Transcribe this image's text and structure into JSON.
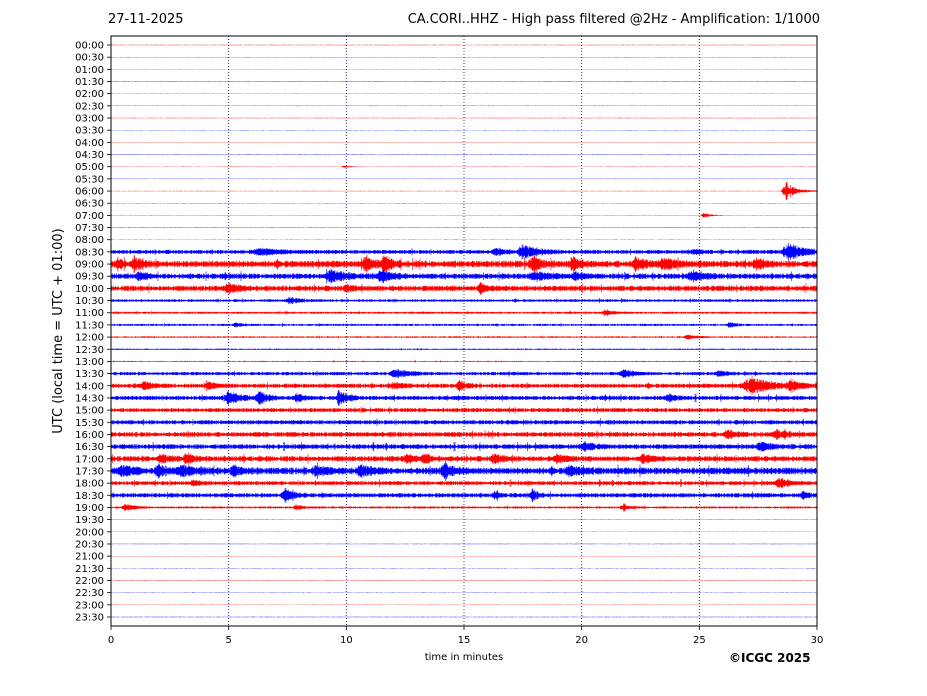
{
  "header": {
    "date": "27-11-2025",
    "title": "CA.CORI..HHZ - High pass filtered @2Hz - Amplification: 1/1000"
  },
  "credit": "©ICGC 2025",
  "chart_data": {
    "type": "line",
    "title": "CA.CORI..HHZ - High pass filtered @2Hz - Amplification: 1/1000",
    "xlabel": "time in minutes",
    "ylabel": "UTC (local time = UTC + 01:00)",
    "xlim": [
      0,
      30
    ],
    "x_ticks": [
      0,
      5,
      10,
      15,
      20,
      25,
      30
    ],
    "x_gridlines": [
      5,
      10,
      15,
      20,
      25
    ],
    "row_labels": [
      "00:00",
      "00:30",
      "01:00",
      "01:30",
      "02:00",
      "02:30",
      "03:00",
      "03:30",
      "04:00",
      "04:30",
      "05:00",
      "05:30",
      "06:00",
      "06:30",
      "07:00",
      "07:30",
      "08:00",
      "08:30",
      "09:00",
      "09:30",
      "10:00",
      "10:30",
      "11:00",
      "11:30",
      "12:00",
      "12:30",
      "13:00",
      "13:30",
      "14:00",
      "14:30",
      "15:00",
      "15:30",
      "16:00",
      "16:30",
      "17:00",
      "17:30",
      "18:00",
      "18:30",
      "19:00",
      "19:30",
      "20:00",
      "20:30",
      "21:00",
      "21:30",
      "22:00",
      "22:30",
      "23:00",
      "23:30"
    ],
    "trace_colors": [
      "#ff0000",
      "#0000ff"
    ],
    "bursts": [
      {
        "row": 10,
        "t": 9.9,
        "amp": 1,
        "dur": 0.5
      },
      {
        "row": 12,
        "t": 28.7,
        "amp": 9,
        "dur": 0.8
      },
      {
        "row": 14,
        "t": 25.2,
        "amp": 3,
        "dur": 0.5
      },
      {
        "row": 17,
        "t": 6.3,
        "amp": 3,
        "dur": 1.5
      },
      {
        "row": 17,
        "t": 17.5,
        "amp": 7,
        "dur": 1.0
      },
      {
        "row": 17,
        "t": 16.3,
        "amp": 4,
        "dur": 0.5
      },
      {
        "row": 17,
        "t": 28.8,
        "amp": 8,
        "dur": 1.2
      },
      {
        "row": 17,
        "t": 24.8,
        "amp": 2,
        "dur": 0.6
      },
      {
        "row": 18,
        "t": 0.3,
        "amp": 5,
        "dur": 0.4
      },
      {
        "row": 18,
        "t": 1.0,
        "amp": 7,
        "dur": 0.5
      },
      {
        "row": 18,
        "t": 10.8,
        "amp": 8,
        "dur": 0.5
      },
      {
        "row": 18,
        "t": 11.6,
        "amp": 8,
        "dur": 0.5
      },
      {
        "row": 18,
        "t": 17.9,
        "amp": 8,
        "dur": 0.6
      },
      {
        "row": 18,
        "t": 19.6,
        "amp": 7,
        "dur": 0.5
      },
      {
        "row": 18,
        "t": 22.3,
        "amp": 6,
        "dur": 0.6
      },
      {
        "row": 18,
        "t": 23.5,
        "amp": 5,
        "dur": 1.0
      },
      {
        "row": 18,
        "t": 27.4,
        "amp": 5,
        "dur": 0.6
      },
      {
        "row": 19,
        "t": 1.2,
        "amp": 5,
        "dur": 0.5
      },
      {
        "row": 19,
        "t": 9.3,
        "amp": 6,
        "dur": 1.0
      },
      {
        "row": 19,
        "t": 11.5,
        "amp": 6,
        "dur": 0.8
      },
      {
        "row": 19,
        "t": 18.0,
        "amp": 4,
        "dur": 1.0
      },
      {
        "row": 19,
        "t": 19.7,
        "amp": 4,
        "dur": 0.6
      },
      {
        "row": 19,
        "t": 24.7,
        "amp": 5,
        "dur": 0.8
      },
      {
        "row": 20,
        "t": 5.0,
        "amp": 4,
        "dur": 0.8
      },
      {
        "row": 20,
        "t": 15.7,
        "amp": 5,
        "dur": 0.5
      },
      {
        "row": 20,
        "t": 10.0,
        "amp": 3,
        "dur": 0.5
      },
      {
        "row": 21,
        "t": 7.6,
        "amp": 3,
        "dur": 0.8
      },
      {
        "row": 22,
        "t": 21.0,
        "amp": 3,
        "dur": 0.6
      },
      {
        "row": 23,
        "t": 5.3,
        "amp": 2,
        "dur": 0.6
      },
      {
        "row": 23,
        "t": 26.3,
        "amp": 3,
        "dur": 0.4
      },
      {
        "row": 24,
        "t": 24.5,
        "amp": 3,
        "dur": 0.6
      },
      {
        "row": 27,
        "t": 12.1,
        "amp": 4,
        "dur": 1.0
      },
      {
        "row": 27,
        "t": 21.8,
        "amp": 4,
        "dur": 0.8
      },
      {
        "row": 27,
        "t": 25.8,
        "amp": 3,
        "dur": 0.6
      },
      {
        "row": 28,
        "t": 1.4,
        "amp": 4,
        "dur": 0.6
      },
      {
        "row": 28,
        "t": 4.1,
        "amp": 4,
        "dur": 0.6
      },
      {
        "row": 28,
        "t": 12.0,
        "amp": 3,
        "dur": 0.6
      },
      {
        "row": 28,
        "t": 14.8,
        "amp": 5,
        "dur": 0.5
      },
      {
        "row": 28,
        "t": 27.2,
        "amp": 8,
        "dur": 1.5
      },
      {
        "row": 28,
        "t": 28.9,
        "amp": 5,
        "dur": 0.6
      },
      {
        "row": 29,
        "t": 5.0,
        "amp": 6,
        "dur": 0.8
      },
      {
        "row": 29,
        "t": 6.3,
        "amp": 6,
        "dur": 0.6
      },
      {
        "row": 29,
        "t": 7.9,
        "amp": 5,
        "dur": 0.4
      },
      {
        "row": 29,
        "t": 9.7,
        "amp": 9,
        "dur": 0.5
      },
      {
        "row": 29,
        "t": 23.7,
        "amp": 3,
        "dur": 0.6
      },
      {
        "row": 32,
        "t": 26.2,
        "amp": 4,
        "dur": 0.6
      },
      {
        "row": 32,
        "t": 28.3,
        "amp": 4,
        "dur": 0.8
      },
      {
        "row": 33,
        "t": 20.1,
        "amp": 4,
        "dur": 0.8
      },
      {
        "row": 33,
        "t": 27.6,
        "amp": 4,
        "dur": 0.8
      },
      {
        "row": 34,
        "t": 2.1,
        "amp": 4,
        "dur": 0.6
      },
      {
        "row": 34,
        "t": 3.2,
        "amp": 5,
        "dur": 0.5
      },
      {
        "row": 34,
        "t": 12.6,
        "amp": 4,
        "dur": 0.6
      },
      {
        "row": 34,
        "t": 13.3,
        "amp": 4,
        "dur": 0.5
      },
      {
        "row": 34,
        "t": 16.3,
        "amp": 4,
        "dur": 0.6
      },
      {
        "row": 34,
        "t": 18.9,
        "amp": 4,
        "dur": 0.6
      },
      {
        "row": 34,
        "t": 22.6,
        "amp": 4,
        "dur": 0.6
      },
      {
        "row": 35,
        "t": 0.5,
        "amp": 5,
        "dur": 0.8
      },
      {
        "row": 35,
        "t": 2.0,
        "amp": 6,
        "dur": 0.5
      },
      {
        "row": 35,
        "t": 3.0,
        "amp": 5,
        "dur": 1.0
      },
      {
        "row": 35,
        "t": 5.2,
        "amp": 5,
        "dur": 0.5
      },
      {
        "row": 35,
        "t": 8.7,
        "amp": 4,
        "dur": 0.8
      },
      {
        "row": 35,
        "t": 10.6,
        "amp": 5,
        "dur": 0.8
      },
      {
        "row": 35,
        "t": 14.2,
        "amp": 6,
        "dur": 0.8
      },
      {
        "row": 35,
        "t": 19.5,
        "amp": 4,
        "dur": 0.8
      },
      {
        "row": 36,
        "t": 3.5,
        "amp": 3,
        "dur": 0.5
      },
      {
        "row": 36,
        "t": 28.4,
        "amp": 5,
        "dur": 0.8
      },
      {
        "row": 37,
        "t": 7.4,
        "amp": 7,
        "dur": 0.6
      },
      {
        "row": 37,
        "t": 16.3,
        "amp": 4,
        "dur": 0.3
      },
      {
        "row": 37,
        "t": 17.9,
        "amp": 7,
        "dur": 0.3
      },
      {
        "row": 37,
        "t": 29.4,
        "amp": 5,
        "dur": 0.3
      },
      {
        "row": 38,
        "t": 0.6,
        "amp": 4,
        "dur": 0.6
      },
      {
        "row": 38,
        "t": 7.9,
        "amp": 2,
        "dur": 0.6
      },
      {
        "row": 38,
        "t": 21.8,
        "amp": 3,
        "dur": 0.6
      }
    ],
    "noisy_rows": [
      {
        "row": 17,
        "level": 1.5
      },
      {
        "row": 18,
        "level": 2.5
      },
      {
        "row": 19,
        "level": 2.0
      },
      {
        "row": 20,
        "level": 2.0
      },
      {
        "row": 21,
        "level": 1.0
      },
      {
        "row": 22,
        "level": 0.8
      },
      {
        "row": 23,
        "level": 0.8
      },
      {
        "row": 24,
        "level": 0.6
      },
      {
        "row": 25,
        "level": 0.5
      },
      {
        "row": 26,
        "level": 0.4
      },
      {
        "row": 27,
        "level": 1.2
      },
      {
        "row": 28,
        "level": 1.6
      },
      {
        "row": 29,
        "level": 1.6
      },
      {
        "row": 30,
        "level": 1.5
      },
      {
        "row": 31,
        "level": 1.6
      },
      {
        "row": 32,
        "level": 1.8
      },
      {
        "row": 33,
        "level": 1.8
      },
      {
        "row": 34,
        "level": 2.0
      },
      {
        "row": 35,
        "level": 2.5
      },
      {
        "row": 36,
        "level": 1.5
      },
      {
        "row": 37,
        "level": 1.6
      },
      {
        "row": 38,
        "level": 0.8
      }
    ]
  }
}
